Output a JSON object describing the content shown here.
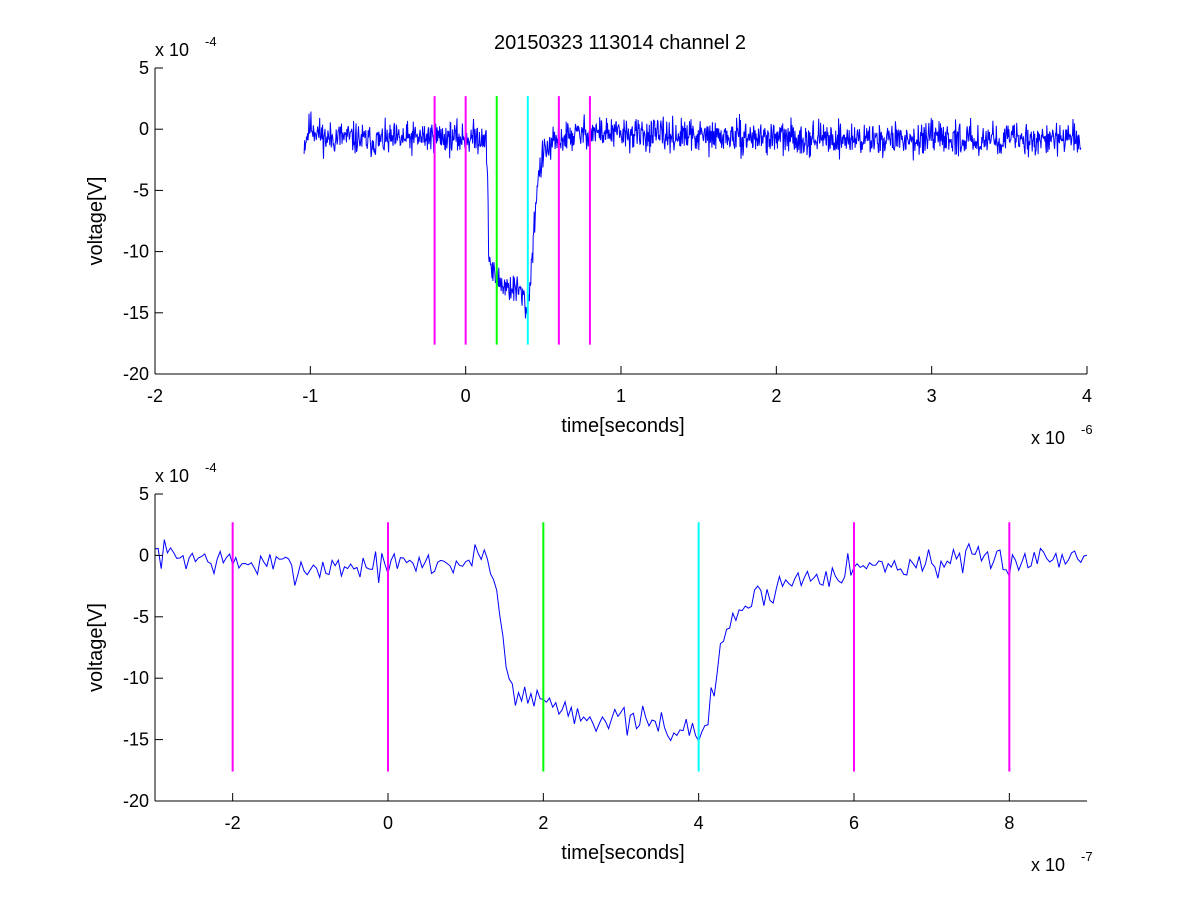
{
  "figure_title": "20150323 113014 channel 2",
  "colors": {
    "signal": "#0000ff",
    "magenta": "#ff00ff",
    "green": "#00ff00",
    "cyan": "#00ffff",
    "axes": "#000000",
    "background": "#ffffff"
  },
  "chart_data": [
    {
      "type": "line",
      "title": "20150323 113014 channel 2",
      "xlabel": "time[seconds]",
      "ylabel": "voltage[V]",
      "x_exponent_label": {
        "base": "x 10",
        "exp": "-6"
      },
      "y_exponent_label": {
        "base": "x 10",
        "exp": "-4"
      },
      "xlim": [
        -2,
        4
      ],
      "ylim": [
        -20,
        5
      ],
      "x_ticks": [
        -2,
        -1,
        0,
        1,
        2,
        3,
        4
      ],
      "x_tick_labels": [
        "-2",
        "-1",
        "0",
        "1",
        "2",
        "3",
        "4"
      ],
      "y_ticks": [
        -20,
        -15,
        -10,
        -5,
        0,
        5
      ],
      "y_tick_labels": [
        "-20",
        "-15",
        "-10",
        "-5",
        "0",
        "5"
      ],
      "grid": false,
      "legend": "none",
      "series": [
        {
          "color": "#0000ff",
          "x_range": [
            -1.04,
            3.96
          ],
          "noise_amplitude": 1.3,
          "points": [
            [
              -1.04,
              -1.2
            ],
            [
              -1.0,
              0.3
            ],
            [
              -0.9,
              -0.8
            ],
            [
              -0.8,
              -0.6
            ],
            [
              -0.6,
              -1.0
            ],
            [
              -0.4,
              -0.8
            ],
            [
              -0.2,
              -0.6
            ],
            [
              0.0,
              -0.8
            ],
            [
              0.1,
              -0.6
            ],
            [
              0.13,
              -0.5
            ],
            [
              0.14,
              -4.0
            ],
            [
              0.15,
              -10.5
            ],
            [
              0.18,
              -12.0
            ],
            [
              0.25,
              -12.8
            ],
            [
              0.35,
              -13.2
            ],
            [
              0.4,
              -14.8
            ],
            [
              0.43,
              -10.0
            ],
            [
              0.46,
              -4.5
            ],
            [
              0.5,
              -2.0
            ],
            [
              0.6,
              -0.8
            ],
            [
              0.8,
              -0.2
            ],
            [
              1.0,
              -0.4
            ],
            [
              1.5,
              -0.6
            ],
            [
              2.0,
              -0.7
            ],
            [
              2.5,
              -0.8
            ],
            [
              3.0,
              -0.8
            ],
            [
              3.5,
              -0.8
            ],
            [
              3.96,
              -0.8
            ]
          ]
        }
      ],
      "markers": [
        {
          "x": -0.2,
          "color": "#ff00ff",
          "y_from": -17.6,
          "y_to": 2.7
        },
        {
          "x": 0.0,
          "color": "#ff00ff",
          "y_from": -17.6,
          "y_to": 2.7
        },
        {
          "x": 0.2,
          "color": "#00ff00",
          "y_from": -17.6,
          "y_to": 2.7
        },
        {
          "x": 0.4,
          "color": "#00ffff",
          "y_from": -17.6,
          "y_to": 2.7
        },
        {
          "x": 0.6,
          "color": "#ff00ff",
          "y_from": -17.6,
          "y_to": 2.7
        },
        {
          "x": 0.8,
          "color": "#ff00ff",
          "y_from": -17.6,
          "y_to": 2.7
        }
      ]
    },
    {
      "type": "line",
      "xlabel": "time[seconds]",
      "ylabel": "voltage[V]",
      "x_exponent_label": {
        "base": "x 10",
        "exp": "-7"
      },
      "y_exponent_label": {
        "base": "x 10",
        "exp": "-4"
      },
      "xlim": [
        -3,
        9
      ],
      "ylim": [
        -20,
        5
      ],
      "x_ticks": [
        -2,
        0,
        2,
        4,
        6,
        8
      ],
      "x_tick_labels": [
        "-2",
        "0",
        "2",
        "4",
        "6",
        "8"
      ],
      "y_ticks": [
        -20,
        -15,
        -10,
        -5,
        0,
        5
      ],
      "y_tick_labels": [
        "-20",
        "-15",
        "-10",
        "-5",
        "0",
        "5"
      ],
      "grid": false,
      "legend": "none",
      "series": [
        {
          "color": "#0000ff",
          "x_range": [
            -3,
            9
          ],
          "noise_amplitude": 1.2,
          "points": [
            [
              -3.0,
              0.2
            ],
            [
              -2.0,
              -0.6
            ],
            [
              -1.0,
              -1.0
            ],
            [
              0.0,
              -0.8
            ],
            [
              1.0,
              -0.6
            ],
            [
              1.3,
              0.2
            ],
            [
              1.4,
              -3.0
            ],
            [
              1.5,
              -8.0
            ],
            [
              1.6,
              -11.0
            ],
            [
              1.8,
              -11.5
            ],
            [
              2.0,
              -11.8
            ],
            [
              2.5,
              -13.0
            ],
            [
              3.0,
              -13.5
            ],
            [
              3.5,
              -13.8
            ],
            [
              4.0,
              -14.6
            ],
            [
              4.1,
              -13.5
            ],
            [
              4.2,
              -11.0
            ],
            [
              4.3,
              -7.0
            ],
            [
              4.5,
              -4.5
            ],
            [
              5.0,
              -2.5
            ],
            [
              5.5,
              -1.5
            ],
            [
              6.0,
              -1.0
            ],
            [
              7.0,
              -0.6
            ],
            [
              8.0,
              -0.4
            ],
            [
              9.0,
              0.0
            ]
          ]
        }
      ],
      "markers": [
        {
          "x": -2,
          "color": "#ff00ff",
          "y_from": -17.6,
          "y_to": 2.7
        },
        {
          "x": 0,
          "color": "#ff00ff",
          "y_from": -17.6,
          "y_to": 2.7
        },
        {
          "x": 2,
          "color": "#00ff00",
          "y_from": -17.6,
          "y_to": 2.7
        },
        {
          "x": 4,
          "color": "#00ffff",
          "y_from": -17.6,
          "y_to": 2.7
        },
        {
          "x": 6,
          "color": "#ff00ff",
          "y_from": -17.6,
          "y_to": 2.7
        },
        {
          "x": 8,
          "color": "#ff00ff",
          "y_from": -17.6,
          "y_to": 2.7
        }
      ]
    }
  ]
}
